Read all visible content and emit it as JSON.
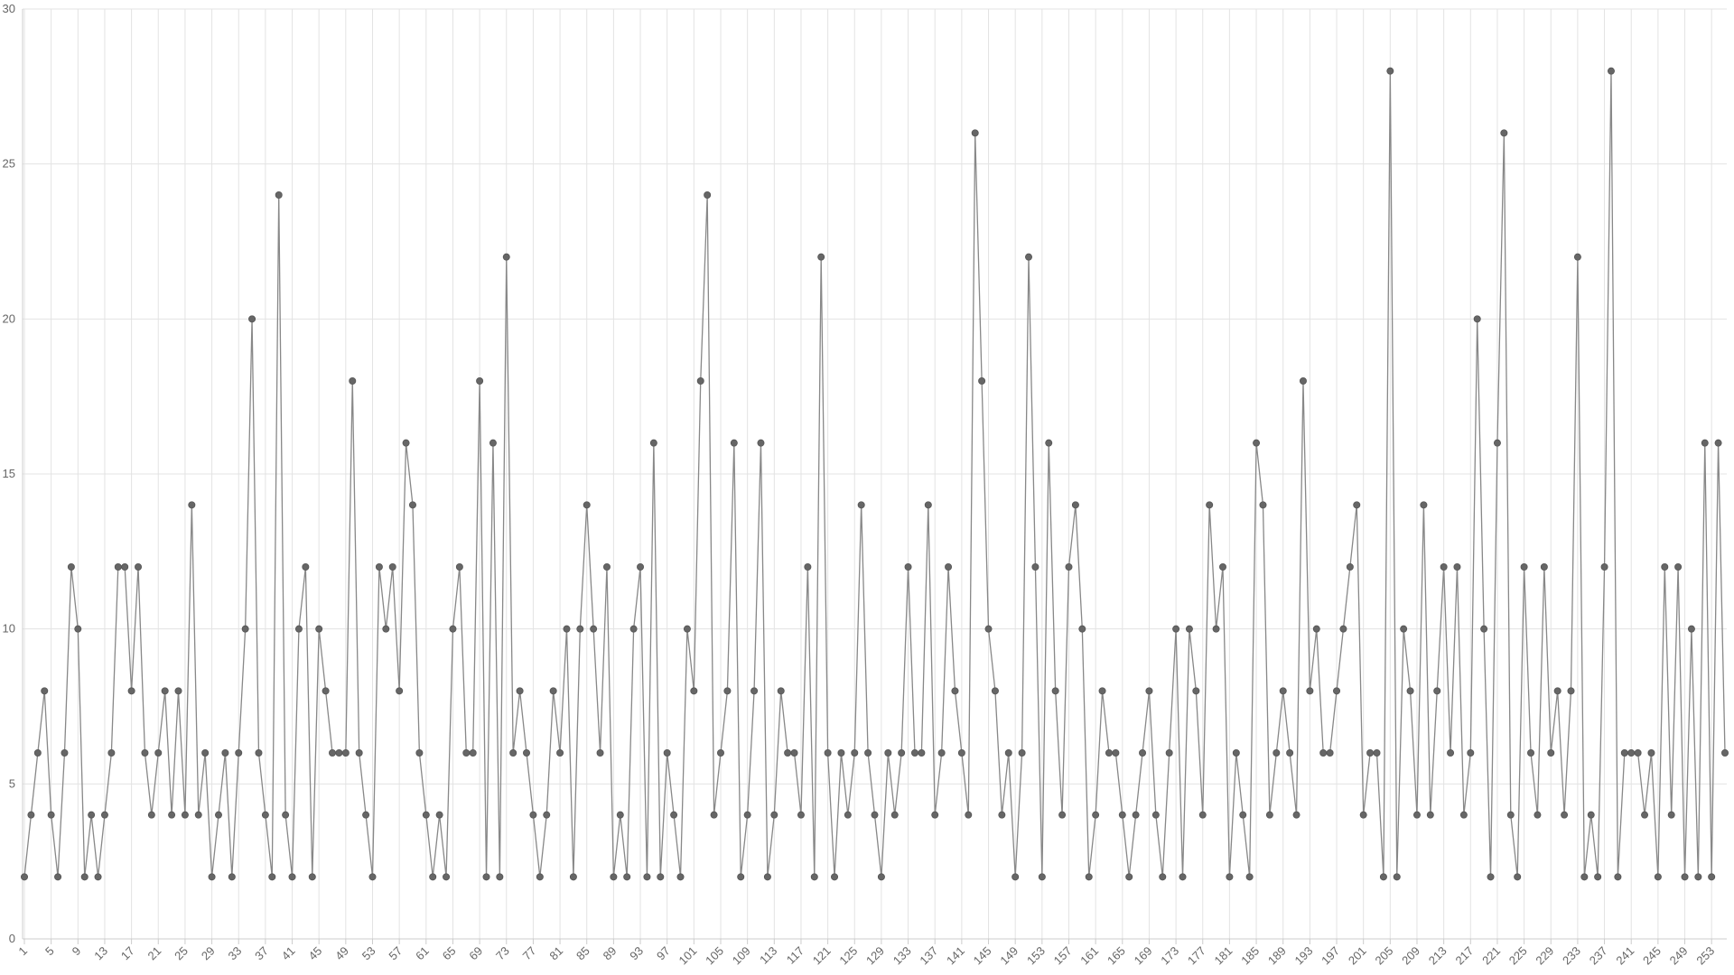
{
  "chart_data": {
    "type": "line",
    "x": [
      1,
      2,
      3,
      4,
      5,
      6,
      7,
      8,
      9,
      10,
      11,
      12,
      13,
      14,
      15,
      16,
      17,
      18,
      19,
      20,
      21,
      22,
      23,
      24,
      25,
      26,
      27,
      28,
      29,
      30,
      31,
      32,
      33,
      34,
      35,
      36,
      37,
      38,
      39,
      40,
      41,
      42,
      43,
      44,
      45,
      46,
      47,
      48,
      49,
      50,
      51,
      52,
      53,
      54,
      55,
      56,
      57,
      58,
      59,
      60,
      61,
      62,
      63,
      64,
      65,
      66,
      67,
      68,
      69,
      70,
      71,
      72,
      73,
      74,
      75,
      76,
      77,
      78,
      79,
      80,
      81,
      82,
      83,
      84,
      85,
      86,
      87,
      88,
      89,
      90,
      91,
      92,
      93,
      94,
      95,
      96,
      97,
      98,
      99,
      100,
      101,
      102,
      103,
      104,
      105,
      106,
      107,
      108,
      109,
      110,
      111,
      112,
      113,
      114,
      115,
      116,
      117,
      118,
      119,
      120,
      121,
      122,
      123,
      124,
      125,
      126,
      127,
      128,
      129,
      130,
      131,
      132,
      133,
      134,
      135,
      136,
      137,
      138,
      139,
      140,
      141,
      142,
      143,
      144,
      145,
      146,
      147,
      148,
      149,
      150,
      151,
      152,
      153,
      154,
      155,
      156,
      157,
      158,
      159,
      160,
      161,
      162,
      163,
      164,
      165,
      166,
      167,
      168,
      169,
      170,
      171,
      172,
      173,
      174,
      175,
      176,
      177,
      178,
      179,
      180,
      181,
      182,
      183,
      184,
      185,
      186,
      187,
      188,
      189,
      190,
      191,
      192,
      193,
      194,
      195,
      196,
      197,
      198,
      199,
      200,
      201,
      202,
      203,
      204,
      205,
      206,
      207,
      208,
      209,
      210,
      211,
      212,
      213,
      214,
      215,
      216,
      217,
      218,
      219,
      220,
      221,
      222,
      223,
      224,
      225,
      226,
      227,
      228,
      229,
      230,
      231,
      232,
      233,
      234,
      235,
      236,
      237,
      238,
      239,
      240,
      241,
      242,
      243,
      244,
      245,
      246,
      247,
      248,
      249,
      250,
      251,
      252,
      253,
      254,
      255
    ],
    "values": [
      2,
      4,
      6,
      8,
      4,
      2,
      6,
      12,
      10,
      2,
      4,
      2,
      4,
      6,
      12,
      12,
      8,
      12,
      6,
      4,
      6,
      8,
      4,
      8,
      4,
      14,
      4,
      6,
      2,
      4,
      6,
      2,
      6,
      10,
      20,
      6,
      4,
      2,
      24,
      4,
      2,
      10,
      12,
      2,
      10,
      8,
      6,
      6,
      6,
      18,
      6,
      4,
      2,
      12,
      10,
      12,
      8,
      16,
      14,
      6,
      4,
      2,
      4,
      2,
      10,
      12,
      6,
      6,
      18,
      2,
      16,
      2,
      22,
      6,
      8,
      6,
      4,
      2,
      4,
      8,
      6,
      10,
      2,
      10,
      14,
      10,
      6,
      12,
      2,
      4,
      2,
      10,
      12,
      2,
      16,
      2,
      6,
      4,
      2,
      10,
      8,
      18,
      24,
      4,
      6,
      8,
      16,
      2,
      4,
      8,
      16,
      2,
      4,
      8,
      6,
      6,
      4,
      12,
      2,
      22,
      6,
      2,
      6,
      4,
      6,
      14,
      6,
      4,
      2,
      6,
      4,
      6,
      12,
      6,
      6,
      14,
      4,
      6,
      12,
      8,
      6,
      4,
      26,
      18,
      10,
      8,
      4,
      6,
      2,
      6,
      22,
      12,
      2,
      16,
      8,
      4,
      12,
      14,
      10,
      2,
      4,
      8,
      6,
      6,
      4,
      2,
      4,
      6,
      8,
      4,
      2,
      6,
      10,
      2,
      10,
      8,
      4,
      14,
      10,
      12,
      2,
      6,
      4,
      2,
      16,
      14,
      4,
      6,
      8,
      6,
      4,
      18,
      8,
      10,
      6,
      6,
      8,
      10,
      12,
      14,
      4,
      6,
      6,
      2,
      28,
      2,
      10,
      8,
      4,
      14,
      4,
      8,
      12,
      6,
      12,
      4,
      6,
      20,
      10,
      2,
      16,
      26,
      4,
      2,
      12,
      6,
      4,
      12,
      6,
      8,
      4,
      8,
      22,
      2,
      4,
      2,
      12,
      28,
      2,
      6,
      6,
      6,
      4,
      6,
      2,
      12,
      4,
      12,
      2,
      10,
      2,
      16,
      2,
      16,
      6
    ],
    "color": "#666666",
    "xlim": [
      1,
      255
    ],
    "xticks": [
      1,
      5,
      9,
      13,
      17,
      21,
      25,
      29,
      33,
      37,
      41,
      45,
      49,
      53,
      57,
      61,
      65,
      69,
      73,
      77,
      81,
      85,
      89,
      93,
      97,
      101,
      105,
      109,
      113,
      117,
      121,
      125,
      129,
      133,
      137,
      141,
      145,
      149,
      153,
      157,
      161,
      165,
      169,
      173,
      177,
      181,
      185,
      189,
      193,
      197,
      201,
      205,
      209,
      213,
      217,
      221,
      225,
      229,
      233,
      237,
      241,
      245,
      249,
      253
    ],
    "ylim": [
      0,
      30
    ],
    "yticks": [
      0,
      5,
      10,
      15,
      20,
      25,
      30
    ],
    "grid": true
  }
}
